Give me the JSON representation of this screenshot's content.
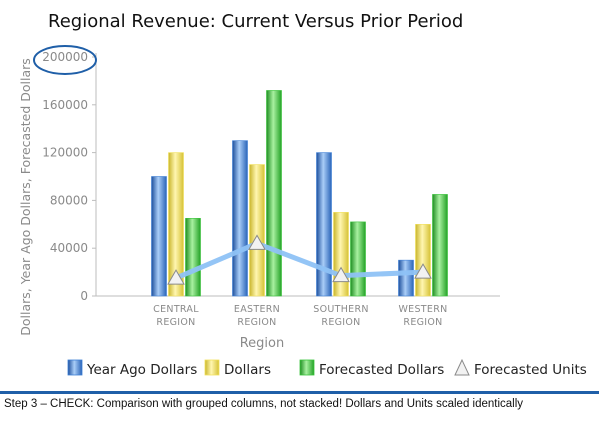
{
  "chart_data": {
    "type": "bar",
    "title": "Regional Revenue: Current Versus Prior Period",
    "xlabel": "Region",
    "ylabel": "Dollars, Year Ago Dollars, Forecasted Dollars",
    "categories": [
      "CENTRAL REGION",
      "EASTERN REGION",
      "SOUTHERN REGION",
      "WESTERN REGION"
    ],
    "ylim": [
      0,
      200000
    ],
    "yticks": [
      "0",
      "40000",
      "80000",
      "120000",
      "160000",
      "200000"
    ],
    "grid": false,
    "legend_position": "bottom",
    "series": [
      {
        "name": "Year Ago Dollars",
        "kind": "bar",
        "color": "#3d7fd6",
        "values": [
          100000,
          130000,
          120000,
          30000
        ]
      },
      {
        "name": "Dollars",
        "kind": "bar",
        "color": "#f2e15c",
        "values": [
          120000,
          110000,
          70000,
          60000
        ]
      },
      {
        "name": "Forecasted Dollars",
        "kind": "bar",
        "color": "#39c43a",
        "values": [
          65000,
          172000,
          62000,
          85000
        ]
      },
      {
        "name": "Forecasted Units",
        "kind": "line",
        "color": "#8ec2f5",
        "marker": "triangle",
        "values": [
          15000,
          44000,
          17000,
          20000
        ]
      }
    ],
    "annotation": {
      "target_tick": "200000",
      "shape": "ellipse",
      "color": "#1f5fa8"
    }
  },
  "caption": "Step 3 – CHECK: Comparison with grouped columns, not stacked! Dollars and Units scaled identically"
}
